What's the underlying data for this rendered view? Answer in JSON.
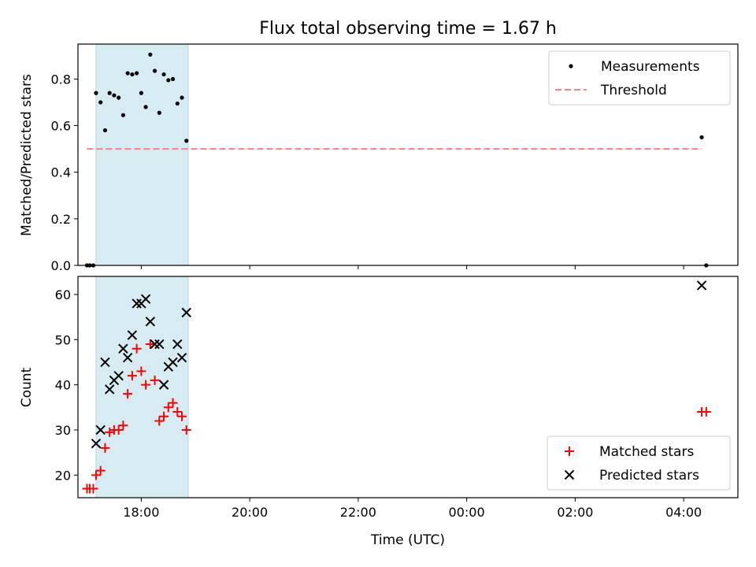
{
  "chart_data": [
    {
      "type": "scatter",
      "title": "Flux total observing time = 1.67 h",
      "xlabel": "",
      "ylabel": "Matched/Predicted stars",
      "xlim": [
        "16:50",
        "05:00"
      ],
      "ylim": [
        0,
        0.95
      ],
      "yticks": [
        0.0,
        0.2,
        0.4,
        0.6,
        0.8
      ],
      "ytick_labels": [
        "0.0",
        "0.2",
        "0.4",
        "0.6",
        "0.8"
      ],
      "xticks": [
        "18:00",
        "20:00",
        "22:00",
        "00:00",
        "02:00",
        "04:00"
      ],
      "xticks_labeled": false,
      "highlight_span": [
        "17:10",
        "18:52"
      ],
      "legend_position": "upper right",
      "series": [
        {
          "name": "Measurements",
          "marker": "dot",
          "color": "#000000",
          "x": [
            "17:00",
            "17:03",
            "17:07",
            "17:10",
            "17:15",
            "17:20",
            "17:25",
            "17:30",
            "17:35",
            "17:40",
            "17:45",
            "17:50",
            "17:55",
            "18:00",
            "18:05",
            "18:10",
            "18:15",
            "18:20",
            "18:25",
            "18:30",
            "18:35",
            "18:40",
            "18:45",
            "18:50",
            "04:20",
            "04:25"
          ],
          "y": [
            0.0,
            0.0,
            0.0,
            0.74,
            0.7,
            0.58,
            0.74,
            0.73,
            0.72,
            0.645,
            0.825,
            0.82,
            0.825,
            0.74,
            0.68,
            0.905,
            0.835,
            0.655,
            0.82,
            0.795,
            0.8,
            0.695,
            0.72,
            0.535,
            0.55,
            0.0
          ]
        },
        {
          "name": "Threshold",
          "style": "dashed line",
          "color": "#ff7f7f",
          "x": [
            "17:00",
            "04:20"
          ],
          "y": [
            0.5,
            0.5
          ]
        }
      ]
    },
    {
      "type": "scatter",
      "title": "",
      "xlabel": "Time (UTC)",
      "ylabel": "Count",
      "xlim": [
        "16:50",
        "05:00"
      ],
      "ylim": [
        15,
        64
      ],
      "yticks": [
        20,
        30,
        40,
        50,
        60
      ],
      "ytick_labels": [
        "20",
        "30",
        "40",
        "50",
        "60"
      ],
      "xticks": [
        "18:00",
        "20:00",
        "22:00",
        "00:00",
        "02:00",
        "04:00"
      ],
      "xtick_labels": [
        "18:00",
        "20:00",
        "22:00",
        "00:00",
        "02:00",
        "04:00"
      ],
      "highlight_span": [
        "17:10",
        "18:52"
      ],
      "legend_position": "lower right",
      "series": [
        {
          "name": "Matched stars",
          "marker": "plus",
          "color": "#ff0000",
          "x": [
            "17:00",
            "17:03",
            "17:07",
            "17:10",
            "17:15",
            "17:20",
            "17:25",
            "17:30",
            "17:35",
            "17:40",
            "17:45",
            "17:50",
            "17:55",
            "18:00",
            "18:05",
            "18:10",
            "18:15",
            "18:20",
            "18:25",
            "18:30",
            "18:35",
            "18:40",
            "18:45",
            "18:50",
            "04:20",
            "04:25"
          ],
          "y": [
            17,
            17,
            17,
            20,
            21,
            26,
            29.5,
            30,
            30,
            31,
            38,
            42,
            48,
            43,
            40,
            49,
            41,
            32,
            33,
            35,
            36,
            34,
            33,
            30,
            34,
            34
          ]
        },
        {
          "name": "Predicted stars",
          "marker": "x",
          "color": "#000000",
          "x": [
            "17:10",
            "17:15",
            "17:20",
            "17:25",
            "17:30",
            "17:35",
            "17:40",
            "17:45",
            "17:50",
            "17:55",
            "18:00",
            "18:05",
            "18:10",
            "18:15",
            "18:20",
            "18:25",
            "18:30",
            "18:35",
            "18:40",
            "18:45",
            "18:50",
            "04:20"
          ],
          "y": [
            27,
            30,
            45,
            39,
            41,
            42,
            48,
            46,
            51,
            58,
            58,
            59,
            54,
            49,
            49,
            40,
            44,
            45,
            49,
            46,
            56,
            62
          ]
        }
      ]
    }
  ],
  "colors": {
    "highlight": "#add8e6",
    "threshold": "#ff7f7f",
    "matched": "#ff0000",
    "predicted": "#000000",
    "measurement": "#000000"
  }
}
